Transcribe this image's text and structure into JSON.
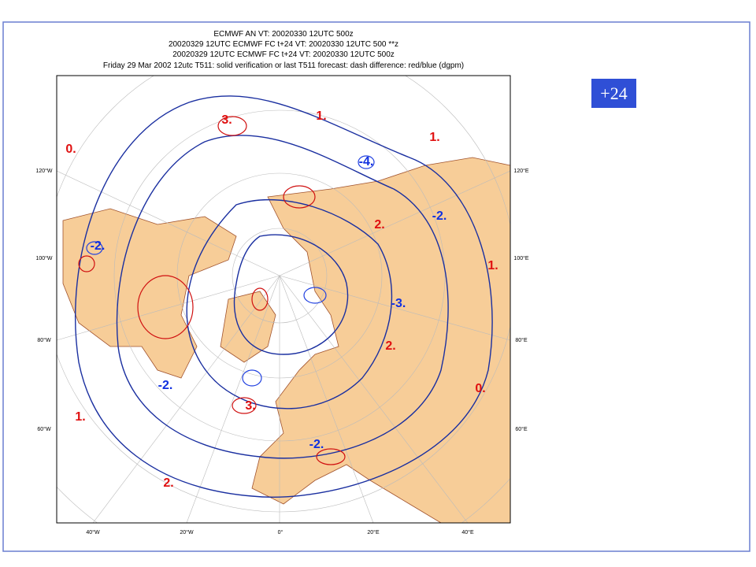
{
  "header": {
    "lines": [
      "ECMWF AN VT: 20020330 12UTC 500z",
      "20020329 12UTC ECMWF FC t+24 VT: 20020330 12UTC 500 **z",
      "20020329 12UTC ECMWF FC t+24 VT: 20020330 12UTC 500z",
      "Friday 29 Mar 2002 12utc T511: solid   verification or last T511 forecast: dash   difference: red/blue (dgpm)"
    ]
  },
  "badge": "+24",
  "map": {
    "longitude_labels": [
      "40°W",
      "20°W",
      "0°",
      "20°E",
      "40°E"
    ],
    "left_labels": [
      "120°W",
      "100°W",
      "80°W",
      "60°W"
    ],
    "right_labels": [
      "120°E",
      "100°E",
      "80°E",
      "60°E"
    ],
    "red_labels": [
      "0.",
      "1.",
      "1.",
      "1.",
      "2.",
      "0.",
      "1.",
      "2.",
      "2.",
      "3.",
      "3."
    ],
    "blue_labels": [
      "-2.",
      "-3.",
      "-2.",
      "-2.",
      "-2.",
      "-4."
    ]
  }
}
